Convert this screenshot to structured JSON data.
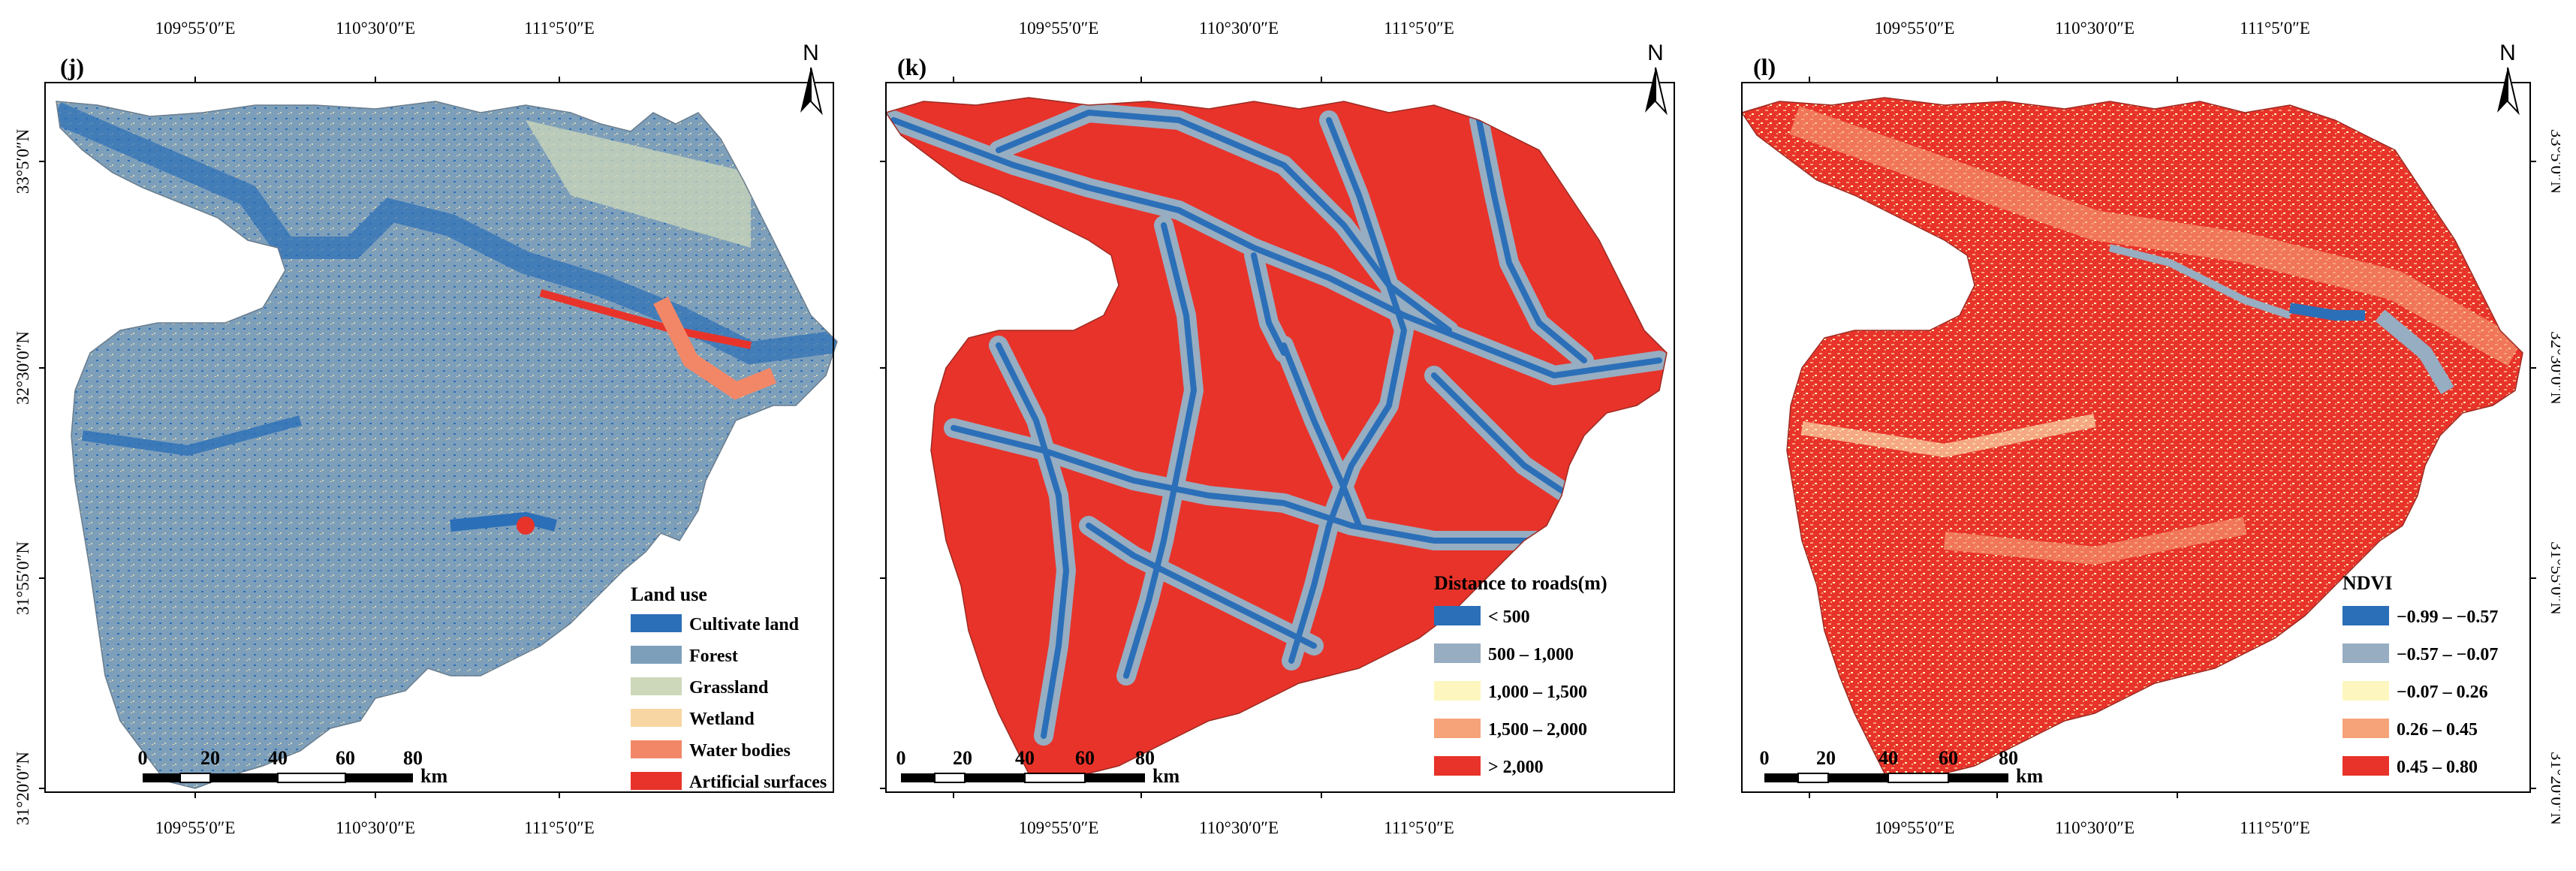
{
  "colors": {
    "landuse": [
      "#2b6fb8",
      "#7e9fba",
      "#cdd8ba",
      "#f8d6a3",
      "#f28767",
      "#e8332a"
    ],
    "roads": [
      "#2b6fb8",
      "#97adc1",
      "#fdf7bf",
      "#f6a37a",
      "#e8332a"
    ],
    "ndvi": [
      "#2b6fb8",
      "#97adc1",
      "#fdf7bf",
      "#f6a37a",
      "#e8332a"
    ]
  },
  "axes": {
    "top_ticks": [
      "109°55′0″E",
      "110°30′0″E",
      "111°5′0″E"
    ],
    "bottom_ticks": [
      "109°55′0″E",
      "110°30′0″E",
      "111°5′0″E"
    ],
    "left_ticks": [
      "33°5′0″N",
      "32°30′0″N",
      "31°55′0″N",
      "31°20′0″N"
    ],
    "right_ticks": [
      "33°5′0″N",
      "32°30′0″N",
      "31°55′0″N",
      "31°20′0″N"
    ]
  },
  "north_label": "N",
  "scalebar": {
    "ticks": [
      "0",
      "20",
      "40",
      "60",
      "80"
    ],
    "unit": "km"
  },
  "panels": [
    {
      "label": "(j)",
      "legend_title": "Land use",
      "legend": [
        "Cultivate land",
        "Forest",
        "Grassland",
        "Wetland",
        "Water bodies",
        "Artificial surfaces"
      ]
    },
    {
      "label": "(k)",
      "legend_title": "Distance to roads(m)",
      "legend": [
        "< 500",
        "500 – 1,000",
        "1,000 – 1,500",
        "1,500 – 2,000",
        "> 2,000"
      ]
    },
    {
      "label": "(l)",
      "legend_title": "NDVI",
      "legend": [
        "−0.99 – −0.57",
        "−0.57 – −0.07",
        "−0.07 – 0.26",
        "0.26 – 0.45",
        "0.45 – 0.80"
      ]
    }
  ]
}
